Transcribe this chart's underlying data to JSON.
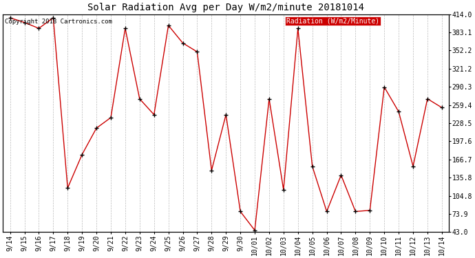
{
  "title": "Solar Radiation Avg per Day W/m2/minute 20181014",
  "copyright_text": "Copyright 2018 Cartronics.com",
  "legend_label": "Radiation (W/m2/Minute)",
  "legend_bg": "#cc0000",
  "legend_text_color": "#ffffff",
  "dates": [
    "9/14",
    "9/15",
    "9/16",
    "9/17",
    "9/18",
    "9/19",
    "9/20",
    "9/21",
    "9/22",
    "9/23",
    "9/24",
    "9/25",
    "9/26",
    "9/27",
    "9/28",
    "9/29",
    "9/30",
    "10/01",
    "10/02",
    "10/03",
    "10/04",
    "10/05",
    "10/06",
    "10/07",
    "10/08",
    "10/09",
    "10/10",
    "10/11",
    "10/12",
    "10/13",
    "10/14"
  ],
  "values": [
    408,
    400,
    390,
    408,
    118,
    175,
    220,
    238,
    390,
    270,
    243,
    395,
    365,
    350,
    148,
    243,
    78,
    46,
    270,
    115,
    390,
    155,
    78,
    140,
    78,
    80,
    290,
    248,
    155,
    270,
    255
  ],
  "ymin": 43.0,
  "ymax": 414.0,
  "yticks": [
    43.0,
    73.9,
    104.8,
    135.8,
    166.7,
    197.6,
    228.5,
    259.4,
    290.3,
    321.2,
    352.2,
    383.1,
    414.0
  ],
  "line_color": "#cc0000",
  "marker_color": "#000000",
  "bg_color": "#ffffff",
  "grid_color": "#bbbbbb",
  "title_fontsize": 10,
  "tick_fontsize": 7,
  "copyright_fontsize": 6.5,
  "legend_fontsize": 7
}
